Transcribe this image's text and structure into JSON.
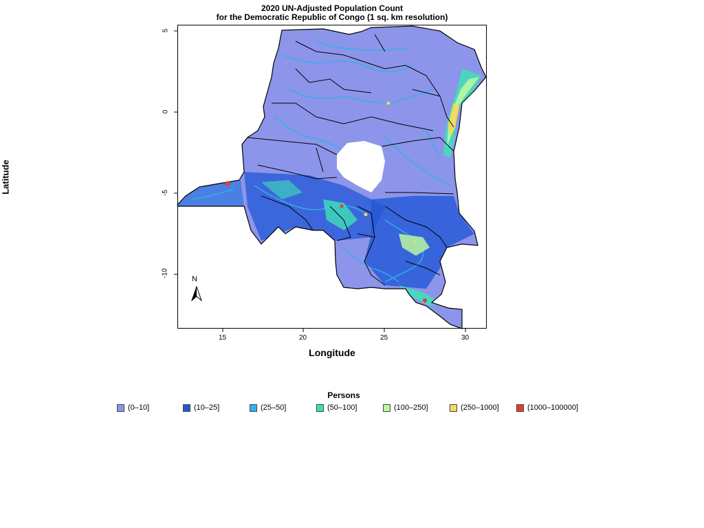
{
  "title_line1": "2020 UN-Adjusted Population Count",
  "title_line2": "for the Democratic Republic of Congo (1 sq. km resolution)",
  "xlabel": "Longitude",
  "ylabel": "Latitude",
  "x_ticks": [
    "15",
    "20",
    "25",
    "30"
  ],
  "y_ticks": [
    "5",
    "0",
    "-5",
    "-10"
  ],
  "north_arrow_label": "N",
  "legend": {
    "title": "Persons",
    "items": [
      {
        "label": "(0–10]",
        "color": "#8c95ea"
      },
      {
        "label": "(10–25]",
        "color": "#2257d6"
      },
      {
        "label": "(25–50]",
        "color": "#2fb2ea"
      },
      {
        "label": "(50–100]",
        "color": "#3fe0b9"
      },
      {
        "label": "(100–250]",
        "color": "#b9f79f"
      },
      {
        "label": "(250–1000]",
        "color": "#f0dd5a"
      },
      {
        "label": "(1000–100000]",
        "color": "#e63d2b"
      }
    ]
  },
  "chart_data": {
    "type": "heatmap",
    "title": "2020 UN-Adjusted Population Count for the Democratic Republic of Congo (1 sq. km resolution)",
    "xlabel": "Longitude",
    "ylabel": "Latitude",
    "xlim": [
      12.2,
      31.3
    ],
    "ylim": [
      -13.5,
      5.4
    ],
    "x_ticks": [
      15,
      20,
      25,
      30
    ],
    "y_ticks": [
      5,
      0,
      -5,
      -10
    ],
    "legend_title": "Persons",
    "classes": [
      "(0–10]",
      "(10–25]",
      "(25–50]",
      "(50–100]",
      "(100–250]",
      "(250–1000]",
      "(1000–100000]"
    ]
  }
}
